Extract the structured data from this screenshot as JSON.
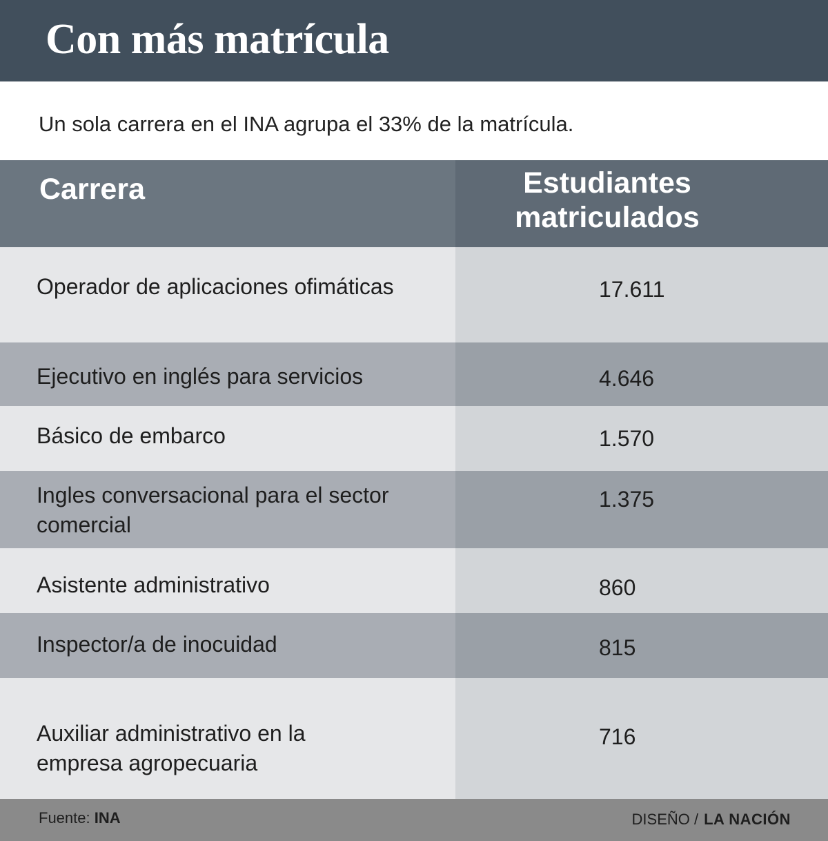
{
  "title": "Con más matrícula",
  "subtitle": "Un sola carrera en el INA agrupa el 33% de la matrícula.",
  "table": {
    "headers": [
      "Carrera",
      "Estudiantes matriculados"
    ],
    "rows": [
      {
        "carrera": "Operador de aplicaciones ofimáticas",
        "estudiantes": "17.611"
      },
      {
        "carrera": "Ejecutivo en inglés para servicios",
        "estudiantes": "4.646"
      },
      {
        "carrera": "Básico de embarco",
        "estudiantes": "1.570"
      },
      {
        "carrera": "Ingles conversacional para el sector comercial",
        "estudiantes": "1.375"
      },
      {
        "carrera": "Asistente administrativo",
        "estudiantes": "860"
      },
      {
        "carrera": "Inspector/a de inocuidad",
        "estudiantes": "815"
      },
      {
        "carrera": "Auxiliar administrativo en la empresa agropecuaria",
        "estudiantes": "716"
      }
    ]
  },
  "footer": {
    "source_label": "Fuente:",
    "source": "INA",
    "design_label": "DISEÑO /",
    "brand": "LA NACIÓN"
  },
  "chart_data": {
    "type": "table",
    "title": "Con más matrícula",
    "subtitle": "Un sola carrera en el INA agrupa el 33% de la matrícula.",
    "columns": [
      "Carrera",
      "Estudiantes matriculados"
    ],
    "categories": [
      "Operador de aplicaciones ofimáticas",
      "Ejecutivo en inglés para servicios",
      "Básico de embarco",
      "Ingles conversacional para el sector comercial",
      "Asistente administrativo",
      "Inspector/a de inocuidad",
      "Auxiliar administrativo en la empresa agropecuaria"
    ],
    "values": [
      17611,
      4646,
      1570,
      1375,
      860,
      815,
      716
    ]
  }
}
